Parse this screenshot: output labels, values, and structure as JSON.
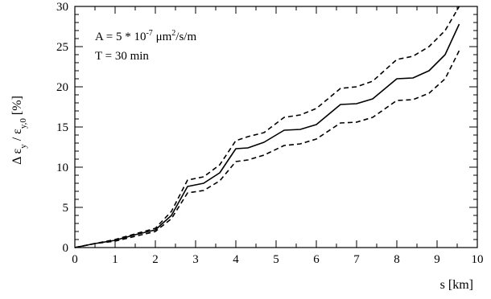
{
  "chart_data": {
    "type": "line",
    "title": "",
    "xlabel": "s [km]",
    "ylabel_parts": {
      "delta": "Δ",
      "eps": "ε",
      "sub_num": "y",
      "slash": " / ",
      "sub_den": "y,0",
      "unit": "  [%]"
    },
    "xlim": [
      0,
      10
    ],
    "ylim": [
      0,
      30
    ],
    "x_ticks": [
      "0",
      "1",
      "2",
      "3",
      "4",
      "5",
      "6",
      "7",
      "8",
      "9",
      "10"
    ],
    "y_ticks": [
      "0",
      "5",
      "10",
      "15",
      "20",
      "25",
      "30"
    ],
    "grid": false,
    "legend": "none",
    "annotations": {
      "line1": {
        "a": "A = 5 * 10",
        "exp": "-7",
        "b": " μm",
        "exp2": "2",
        "c": "/s/m"
      },
      "line2": "T = 30 min"
    },
    "series": [
      {
        "style": "dashed",
        "points": [
          [
            0,
            0
          ],
          [
            0.5,
            0.5
          ],
          [
            1.0,
            1.0
          ],
          [
            1.5,
            1.7
          ],
          [
            2.0,
            2.4
          ],
          [
            2.4,
            4.5
          ],
          [
            2.8,
            8.4
          ],
          [
            3.2,
            8.8
          ],
          [
            3.6,
            10.3
          ],
          [
            4.0,
            13.3
          ],
          [
            4.3,
            13.8
          ],
          [
            4.7,
            14.3
          ],
          [
            5.2,
            16.2
          ],
          [
            5.6,
            16.5
          ],
          [
            6.0,
            17.3
          ],
          [
            6.6,
            19.8
          ],
          [
            7.0,
            20.0
          ],
          [
            7.4,
            20.7
          ],
          [
            8.0,
            23.4
          ],
          [
            8.4,
            23.8
          ],
          [
            8.8,
            25.0
          ],
          [
            9.2,
            27.0
          ],
          [
            9.55,
            30.0
          ]
        ]
      },
      {
        "style": "solid",
        "points": [
          [
            0,
            0
          ],
          [
            0.5,
            0.5
          ],
          [
            1.0,
            0.9
          ],
          [
            1.5,
            1.6
          ],
          [
            2.0,
            2.2
          ],
          [
            2.4,
            4.0
          ],
          [
            2.8,
            7.6
          ],
          [
            3.2,
            8.0
          ],
          [
            3.6,
            9.3
          ],
          [
            4.0,
            12.3
          ],
          [
            4.3,
            12.4
          ],
          [
            4.7,
            13.1
          ],
          [
            5.2,
            14.6
          ],
          [
            5.6,
            14.7
          ],
          [
            6.0,
            15.3
          ],
          [
            6.6,
            17.8
          ],
          [
            7.0,
            17.9
          ],
          [
            7.4,
            18.5
          ],
          [
            8.0,
            21.0
          ],
          [
            8.4,
            21.1
          ],
          [
            8.8,
            22.0
          ],
          [
            9.2,
            24.0
          ],
          [
            9.55,
            27.8
          ]
        ]
      },
      {
        "style": "dashed",
        "points": [
          [
            0,
            0
          ],
          [
            0.5,
            0.5
          ],
          [
            1.0,
            0.8
          ],
          [
            1.5,
            1.4
          ],
          [
            2.0,
            2.0
          ],
          [
            2.4,
            3.6
          ],
          [
            2.8,
            6.8
          ],
          [
            3.2,
            7.1
          ],
          [
            3.6,
            8.3
          ],
          [
            4.0,
            10.7
          ],
          [
            4.3,
            10.9
          ],
          [
            4.7,
            11.5
          ],
          [
            5.2,
            12.7
          ],
          [
            5.6,
            12.9
          ],
          [
            6.0,
            13.5
          ],
          [
            6.6,
            15.5
          ],
          [
            7.0,
            15.6
          ],
          [
            7.4,
            16.2
          ],
          [
            8.0,
            18.3
          ],
          [
            8.4,
            18.4
          ],
          [
            8.8,
            19.2
          ],
          [
            9.2,
            21.0
          ],
          [
            9.55,
            24.5
          ]
        ]
      }
    ]
  }
}
